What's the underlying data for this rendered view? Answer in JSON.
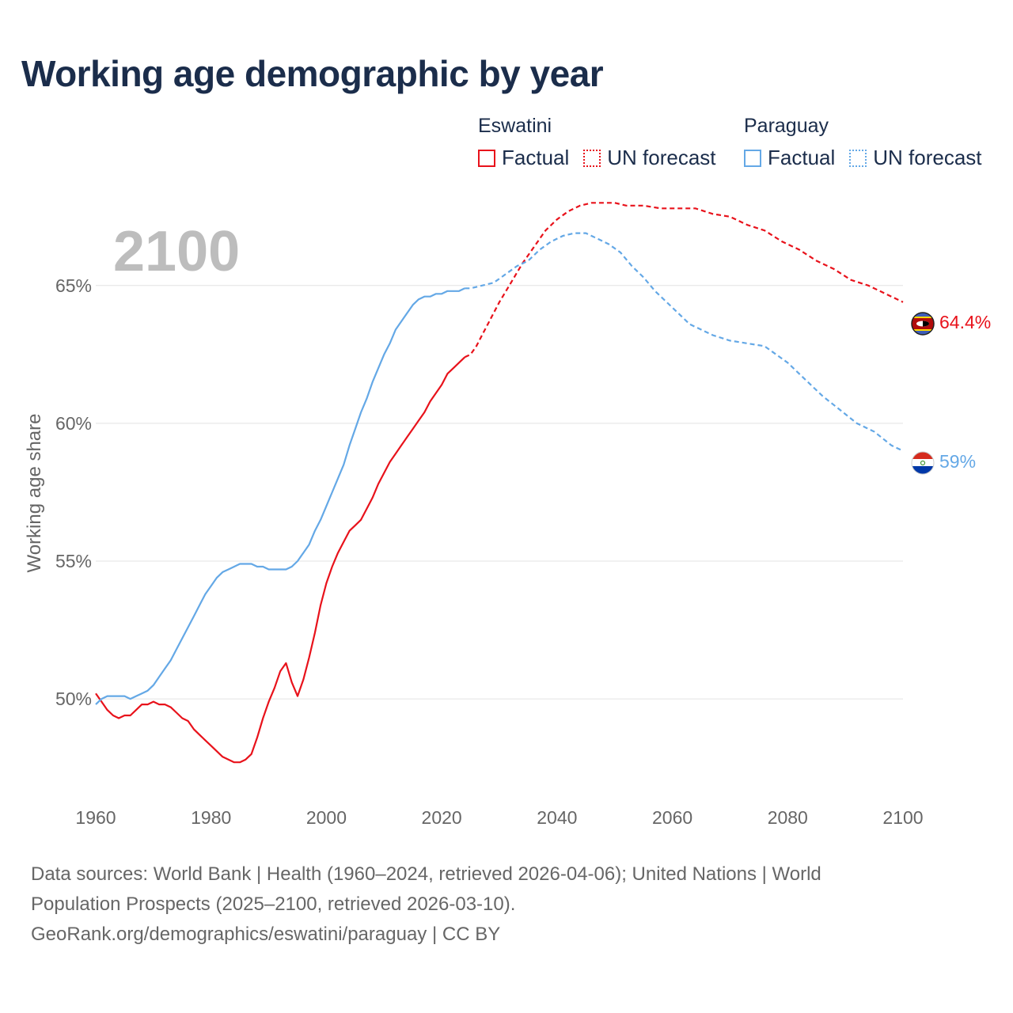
{
  "title": "Working age demographic by year",
  "legend": {
    "groups": [
      {
        "country": "Eswatini",
        "factual_label": "Factual",
        "forecast_label": "UN forecast",
        "color": "#e8121b"
      },
      {
        "country": "Paraguay",
        "factual_label": "Factual",
        "forecast_label": "UN forecast",
        "color": "#64a8e6"
      }
    ]
  },
  "year_overlay": "2100",
  "sources": {
    "line1": "Data sources: World Bank | Health (1960–2024, retrieved 2026-04-06); United Nations | World",
    "line2": "Population Prospects (2025–2100, retrieved 2026-03-10).",
    "line3": "GeoRank.org/demographics/eswatini/paraguay | CC BY"
  },
  "chart_data": {
    "type": "line",
    "title": "Working age demographic by year",
    "xlabel": "",
    "ylabel": "Working age share",
    "xlim": [
      1960,
      2100
    ],
    "ylim": [
      46.5,
      68.9
    ],
    "x_ticks": [
      1960,
      1980,
      2000,
      2020,
      2040,
      2060,
      2080,
      2100
    ],
    "y_ticks": [
      50,
      55,
      60,
      65
    ],
    "y_tick_labels": [
      "50%",
      "55%",
      "60%",
      "65%"
    ],
    "grid": "horizontal",
    "factual_range": [
      1960,
      2024
    ],
    "forecast_range": [
      2025,
      2100
    ],
    "series": [
      {
        "name": "Eswatini",
        "color": "#e8121b",
        "end_label": "64.4%",
        "flag": "eswatini-flag",
        "points": [
          [
            1960,
            50.2
          ],
          [
            1961,
            49.9
          ],
          [
            1962,
            49.6
          ],
          [
            1963,
            49.4
          ],
          [
            1964,
            49.3
          ],
          [
            1965,
            49.4
          ],
          [
            1966,
            49.4
          ],
          [
            1967,
            49.6
          ],
          [
            1968,
            49.8
          ],
          [
            1969,
            49.8
          ],
          [
            1970,
            49.9
          ],
          [
            1971,
            49.8
          ],
          [
            1972,
            49.8
          ],
          [
            1973,
            49.7
          ],
          [
            1974,
            49.5
          ],
          [
            1975,
            49.3
          ],
          [
            1976,
            49.2
          ],
          [
            1977,
            48.9
          ],
          [
            1978,
            48.7
          ],
          [
            1979,
            48.5
          ],
          [
            1980,
            48.3
          ],
          [
            1981,
            48.1
          ],
          [
            1982,
            47.9
          ],
          [
            1983,
            47.8
          ],
          [
            1984,
            47.7
          ],
          [
            1985,
            47.7
          ],
          [
            1986,
            47.8
          ],
          [
            1987,
            48.0
          ],
          [
            1988,
            48.6
          ],
          [
            1989,
            49.3
          ],
          [
            1990,
            49.9
          ],
          [
            1991,
            50.4
          ],
          [
            1992,
            51.0
          ],
          [
            1993,
            51.3
          ],
          [
            1994,
            50.6
          ],
          [
            1995,
            50.1
          ],
          [
            1996,
            50.7
          ],
          [
            1997,
            51.5
          ],
          [
            1998,
            52.4
          ],
          [
            1999,
            53.4
          ],
          [
            2000,
            54.2
          ],
          [
            2001,
            54.8
          ],
          [
            2002,
            55.3
          ],
          [
            2003,
            55.7
          ],
          [
            2004,
            56.1
          ],
          [
            2005,
            56.3
          ],
          [
            2006,
            56.5
          ],
          [
            2007,
            56.9
          ],
          [
            2008,
            57.3
          ],
          [
            2009,
            57.8
          ],
          [
            2010,
            58.2
          ],
          [
            2011,
            58.6
          ],
          [
            2012,
            58.9
          ],
          [
            2013,
            59.2
          ],
          [
            2014,
            59.5
          ],
          [
            2015,
            59.8
          ],
          [
            2016,
            60.1
          ],
          [
            2017,
            60.4
          ],
          [
            2018,
            60.8
          ],
          [
            2019,
            61.1
          ],
          [
            2020,
            61.4
          ],
          [
            2021,
            61.8
          ],
          [
            2022,
            62.0
          ],
          [
            2023,
            62.2
          ],
          [
            2024,
            62.4
          ],
          [
            2025,
            62.5
          ],
          [
            2026,
            62.8
          ],
          [
            2027,
            63.2
          ],
          [
            2028,
            63.6
          ],
          [
            2029,
            64.0
          ],
          [
            2030,
            64.4
          ],
          [
            2032,
            65.1
          ],
          [
            2034,
            65.8
          ],
          [
            2036,
            66.4
          ],
          [
            2038,
            67.0
          ],
          [
            2040,
            67.4
          ],
          [
            2042,
            67.7
          ],
          [
            2044,
            67.9
          ],
          [
            2046,
            68.0
          ],
          [
            2048,
            68.0
          ],
          [
            2050,
            68.0
          ],
          [
            2052,
            67.9
          ],
          [
            2055,
            67.9
          ],
          [
            2058,
            67.8
          ],
          [
            2061,
            67.8
          ],
          [
            2064,
            67.8
          ],
          [
            2067,
            67.6
          ],
          [
            2070,
            67.5
          ],
          [
            2073,
            67.2
          ],
          [
            2076,
            67.0
          ],
          [
            2079,
            66.6
          ],
          [
            2082,
            66.3
          ],
          [
            2085,
            65.9
          ],
          [
            2088,
            65.6
          ],
          [
            2091,
            65.2
          ],
          [
            2094,
            65.0
          ],
          [
            2097,
            64.7
          ],
          [
            2100,
            64.4
          ]
        ]
      },
      {
        "name": "Paraguay",
        "color": "#64a8e6",
        "end_label": "59%",
        "flag": "paraguay-flag",
        "points": [
          [
            1960,
            49.8
          ],
          [
            1961,
            50.0
          ],
          [
            1962,
            50.1
          ],
          [
            1963,
            50.1
          ],
          [
            1964,
            50.1
          ],
          [
            1965,
            50.1
          ],
          [
            1966,
            50.0
          ],
          [
            1967,
            50.1
          ],
          [
            1968,
            50.2
          ],
          [
            1969,
            50.3
          ],
          [
            1970,
            50.5
          ],
          [
            1971,
            50.8
          ],
          [
            1972,
            51.1
          ],
          [
            1973,
            51.4
          ],
          [
            1974,
            51.8
          ],
          [
            1975,
            52.2
          ],
          [
            1976,
            52.6
          ],
          [
            1977,
            53.0
          ],
          [
            1978,
            53.4
          ],
          [
            1979,
            53.8
          ],
          [
            1980,
            54.1
          ],
          [
            1981,
            54.4
          ],
          [
            1982,
            54.6
          ],
          [
            1983,
            54.7
          ],
          [
            1984,
            54.8
          ],
          [
            1985,
            54.9
          ],
          [
            1986,
            54.9
          ],
          [
            1987,
            54.9
          ],
          [
            1988,
            54.8
          ],
          [
            1989,
            54.8
          ],
          [
            1990,
            54.7
          ],
          [
            1991,
            54.7
          ],
          [
            1992,
            54.7
          ],
          [
            1993,
            54.7
          ],
          [
            1994,
            54.8
          ],
          [
            1995,
            55.0
          ],
          [
            1996,
            55.3
          ],
          [
            1997,
            55.6
          ],
          [
            1998,
            56.1
          ],
          [
            1999,
            56.5
          ],
          [
            2000,
            57.0
          ],
          [
            2001,
            57.5
          ],
          [
            2002,
            58.0
          ],
          [
            2003,
            58.5
          ],
          [
            2004,
            59.2
          ],
          [
            2005,
            59.8
          ],
          [
            2006,
            60.4
          ],
          [
            2007,
            60.9
          ],
          [
            2008,
            61.5
          ],
          [
            2009,
            62.0
          ],
          [
            2010,
            62.5
          ],
          [
            2011,
            62.9
          ],
          [
            2012,
            63.4
          ],
          [
            2013,
            63.7
          ],
          [
            2014,
            64.0
          ],
          [
            2015,
            64.3
          ],
          [
            2016,
            64.5
          ],
          [
            2017,
            64.6
          ],
          [
            2018,
            64.6
          ],
          [
            2019,
            64.7
          ],
          [
            2020,
            64.7
          ],
          [
            2021,
            64.8
          ],
          [
            2022,
            64.8
          ],
          [
            2023,
            64.8
          ],
          [
            2024,
            64.9
          ],
          [
            2025,
            64.9
          ],
          [
            2027,
            65.0
          ],
          [
            2029,
            65.1
          ],
          [
            2031,
            65.4
          ],
          [
            2033,
            65.7
          ],
          [
            2035,
            65.9
          ],
          [
            2037,
            66.3
          ],
          [
            2039,
            66.6
          ],
          [
            2041,
            66.8
          ],
          [
            2043,
            66.9
          ],
          [
            2045,
            66.9
          ],
          [
            2047,
            66.7
          ],
          [
            2049,
            66.5
          ],
          [
            2051,
            66.2
          ],
          [
            2053,
            65.7
          ],
          [
            2055,
            65.3
          ],
          [
            2057,
            64.8
          ],
          [
            2059,
            64.4
          ],
          [
            2061,
            64.0
          ],
          [
            2063,
            63.6
          ],
          [
            2065,
            63.4
          ],
          [
            2067,
            63.2
          ],
          [
            2070,
            63.0
          ],
          [
            2073,
            62.9
          ],
          [
            2076,
            62.8
          ],
          [
            2078,
            62.5
          ],
          [
            2080,
            62.2
          ],
          [
            2083,
            61.6
          ],
          [
            2086,
            61.0
          ],
          [
            2089,
            60.5
          ],
          [
            2092,
            60.0
          ],
          [
            2095,
            59.7
          ],
          [
            2098,
            59.2
          ],
          [
            2100,
            59.0
          ]
        ]
      }
    ]
  }
}
